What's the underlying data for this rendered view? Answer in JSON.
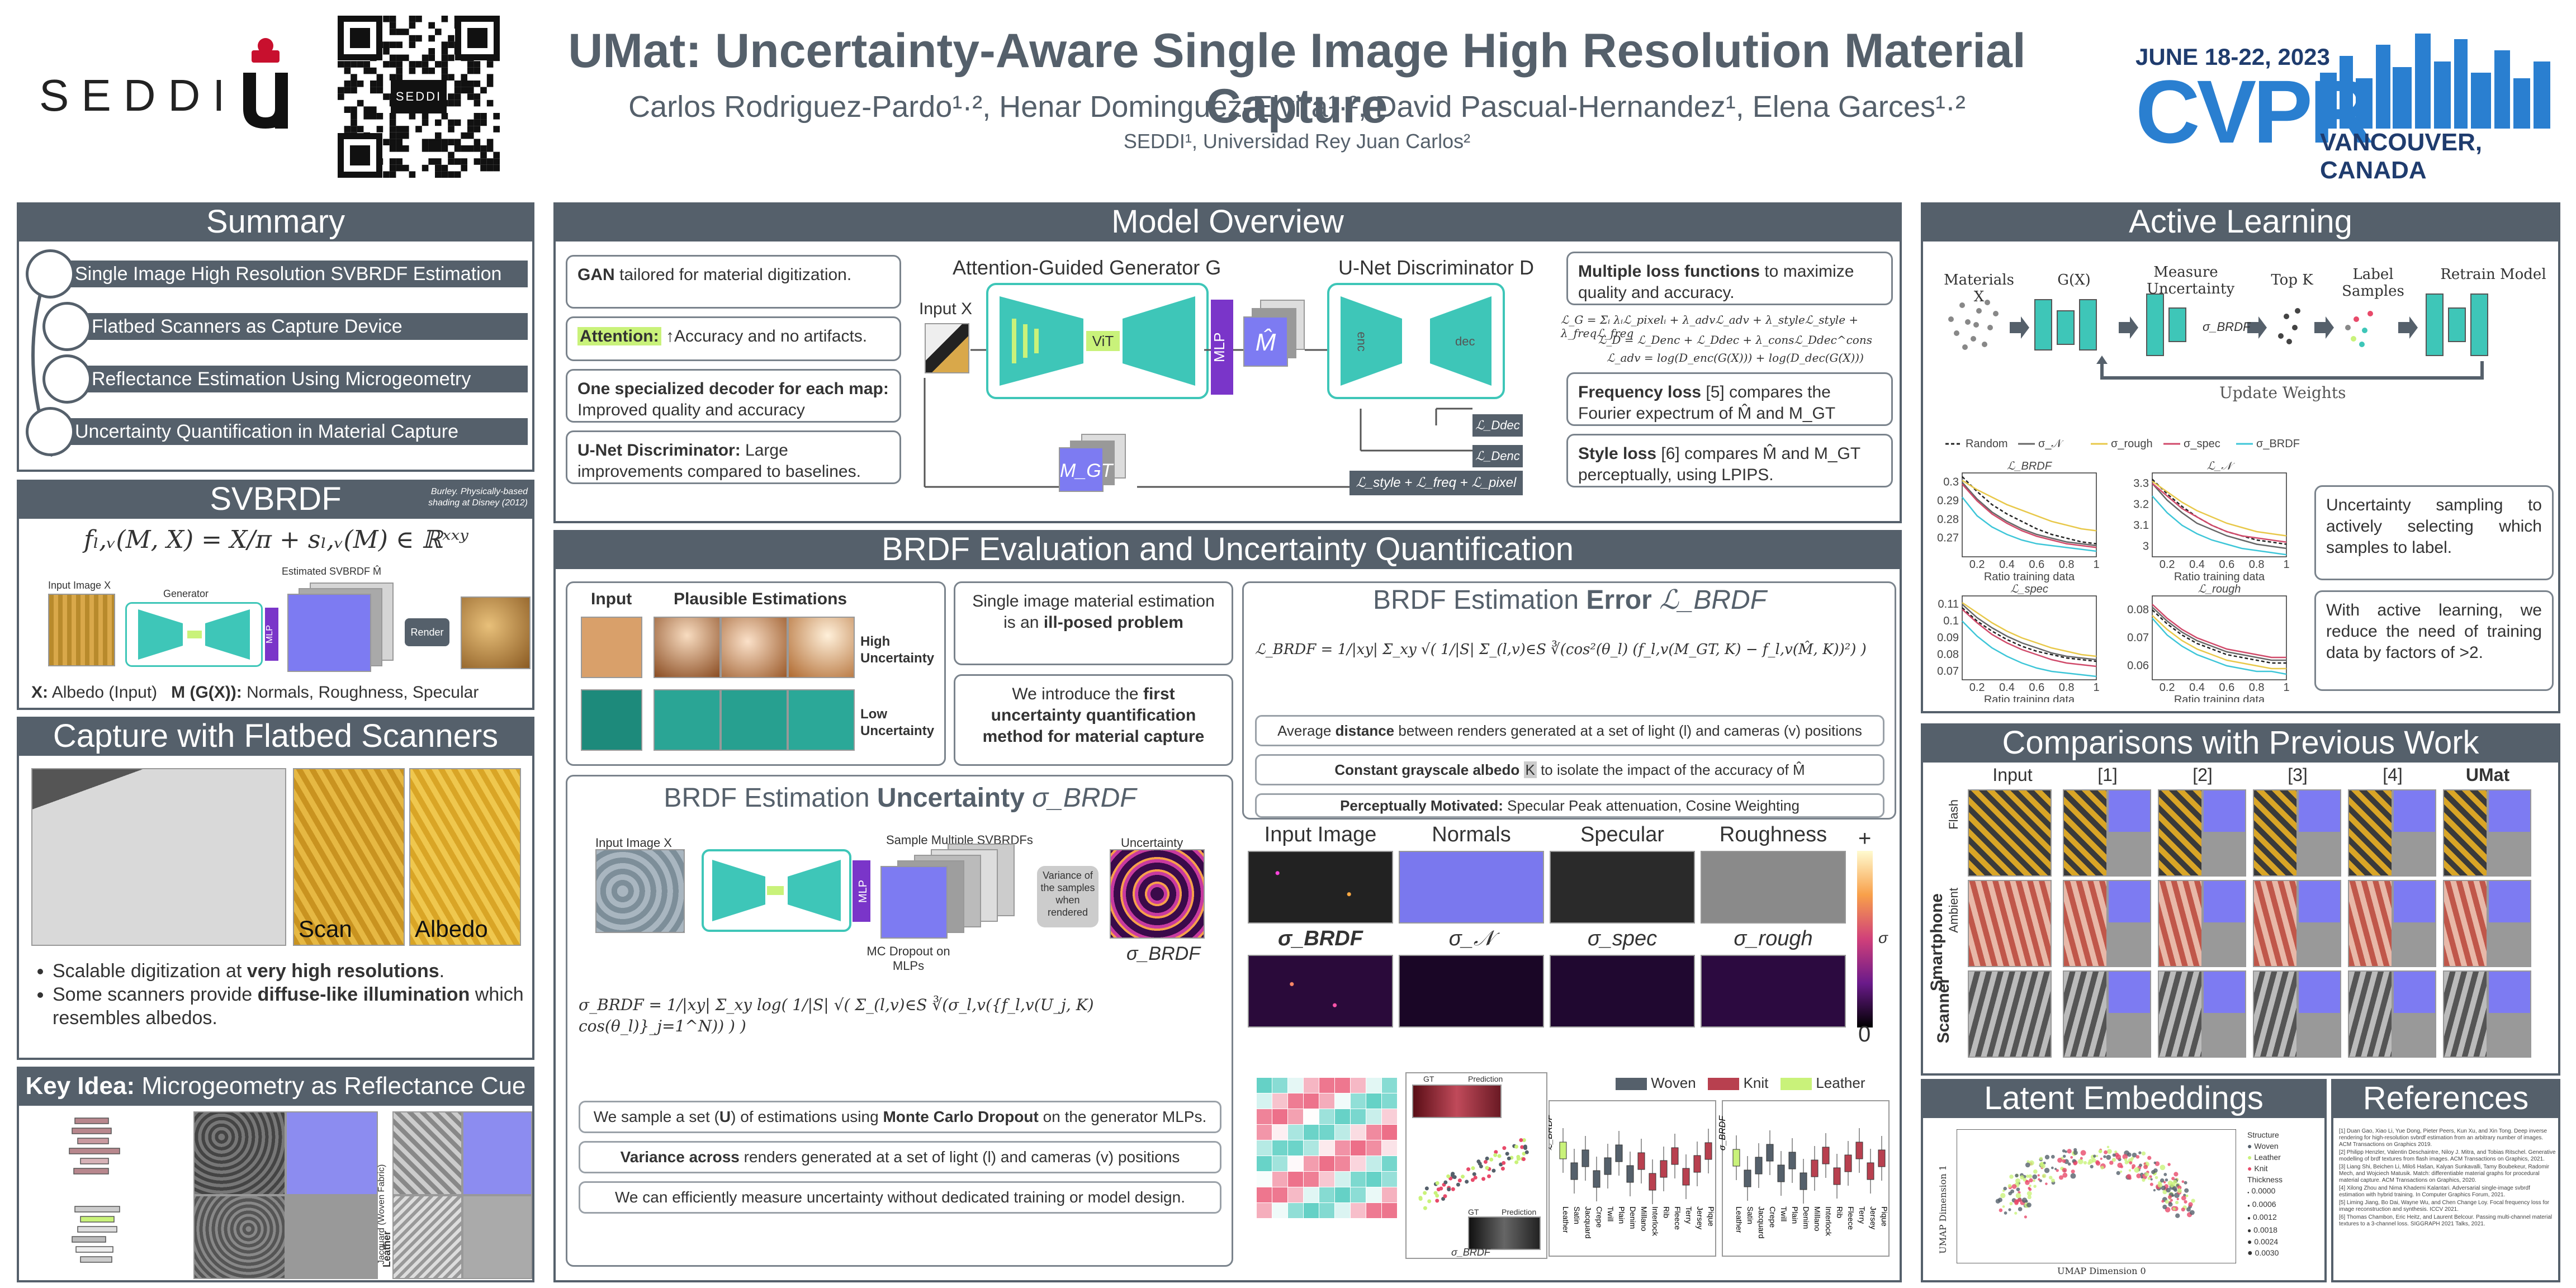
{
  "header": {
    "brand_left": "SEDDI",
    "qr_label": "SEDDI",
    "title": "UMat: Uncertainty-Aware Single Image High Resolution Material Capture",
    "authors": "Carlos Rodriguez-Pardo¹·², Henar Dominguez-Elvira¹·², David Pascual-Hernandez¹, Elena Garces¹·²",
    "affiliations": "SEDDI¹, Universidad Rey Juan Carlos²",
    "conf_dates": "JUNE 18-22, 2023",
    "conf_name": "CVPR",
    "conf_location": "VANCOUVER, CANADA"
  },
  "summary": {
    "title": "Summary",
    "items": [
      "Single Image High Resolution SVBRDF Estimation",
      "Flatbed Scanners as Capture Device",
      "Reflectance Estimation Using Microgeometry",
      "Uncertainty Quantification in Material Capture"
    ]
  },
  "svbrdf": {
    "title": "SVBRDF",
    "note_line1": "Burley. Physically-based",
    "note_line2": "shading at Disney (2012)",
    "equation": "fₗ,ᵥ(M, X) = X/π + sₗ,ᵥ(M) ∈ ℝˣˣʸ",
    "input_label": "Input Image X",
    "generator_label": "Generator",
    "estimated_label": "Estimated SVBRDF M̂",
    "mlp": "MLP",
    "render": "Render",
    "caption_x": "X:",
    "caption_x_text": "Albedo (Input)",
    "caption_m": "M (G(X)):",
    "caption_m_text": "Normals, Roughness, Specular"
  },
  "capture": {
    "title": "Capture with Flatbed Scanners",
    "scan_label": "Scan",
    "albedo_label": "Albedo",
    "bullet1_pre": "Scalable digitization at ",
    "bullet1_bold": "very high resolutions",
    "bullet1_post": ".",
    "bullet2_pre": "Some scanners provide ",
    "bullet2_bold": "diffuse-like illumination",
    "bullet2_post": " which resembles albedos."
  },
  "keyidea": {
    "title_bold": "Key Idea:",
    "title_rest": " Microgeometry as Reflectance Cue",
    "leather": "Leather",
    "jacquard": "Jacquard (Woven Fabric)"
  },
  "model": {
    "title": "Model Overview",
    "box1_bold": "GAN",
    "box1_rest": " tailored for material digitization.",
    "box2_hl": "Attention:",
    "box2_rest": " ↑Accuracy and no artifacts.",
    "box3_bold": "One specialized decoder for each map:",
    "box3_rest": "Improved quality and accuracy",
    "box4_bold": "U-Net Discriminator:",
    "box4_rest": " Large improvements compared to baselines.",
    "gen_title": "Attention-Guided Generator G",
    "disc_title": "U-Net Discriminator D",
    "input_x": "Input X",
    "vit": "ViT",
    "mlp": "MLP",
    "m_hat": "M̂",
    "m_gt": "M_GT",
    "enc": "enc",
    "dec": "dec",
    "loss_dec": "ℒ_Ddec",
    "loss_enc": "ℒ_Denc",
    "loss_sum": "ℒ_style + ℒ_freq + ℒ_pixel",
    "loss_box_bold": "Multiple loss functions",
    "loss_box_rest": " to maximize quality and accuracy.",
    "eq1": "ℒ_G = Σᵢ λᵢℒ_pixelᵢ + λ_advℒ_adv + λ_styleℒ_style + λ_freqℒ_freq",
    "eq2": "ℒ_D = ℒ_Denc + ℒ_Ddec + λ_consℒ_Ddec^cons",
    "eq3": "ℒ_adv = log(D_enc(G(X))) + log(D_dec(G(X)))",
    "freq_bold": "Frequency loss",
    "freq_rest": " [5] compares the Fourier expectrum of M̂ and M_GT",
    "style_bold": "Style loss",
    "style_rest": " [6] compares M̂ and M_GT perceptually, using LPIPS."
  },
  "brdf": {
    "title": "BRDF Evaluation and Uncertainty Quantification",
    "input_label": "Input",
    "plausible_label": "Plausible Estimations",
    "high_unc": "High Uncertainty",
    "low_unc": "Low Uncertainty",
    "illposed_pre": "Single image material estimation is an ",
    "illposed_bold": "ill-posed problem",
    "first_pre": "We introduce the ",
    "first_bold": "first uncertainty quantification method for material capture",
    "unc_title_pre": "BRDF Estimation ",
    "unc_title_bold": "Uncertainty",
    "unc_title_sym": " σ_BRDF",
    "unc_input": "Input Image X",
    "unc_sample": "Sample Multiple SVBRDFs",
    "unc_uncertainty": "Uncertainty",
    "unc_variance": "Variance of the samples when rendered",
    "unc_mc": "MC Dropout on MLPs",
    "unc_sigma": "σ_BRDF",
    "unc_eq": "σ_BRDF = 1/|xy| Σ_xy log( 1/|S| √( Σ_(l,v)∈S ∛(σ_l,v({f_l,v(U_j, K) cos(θ_l)}_j=1^N)) ) )",
    "unc_b1_pre": "We sample a set (",
    "unc_b1_u": "U",
    "unc_b1_mid": ") of estimations using ",
    "unc_b1_bold": "Monte Carlo Dropout",
    "unc_b1_post": " on the generator MLPs.",
    "unc_b2_bold": "Variance across",
    "unc_b2_rest": " renders generated at a set of light (l) and cameras (v) positions",
    "unc_b3": "We can efficiently measure uncertainty without dedicated training or model design.",
    "err_title_pre": "BRDF Estimation ",
    "err_title_bold": "Error",
    "err_title_sym": " ℒ_BRDF",
    "err_eq": "ℒ_BRDF = 1/|xy| Σ_xy √( 1/|S| Σ_(l,v)∈S ∛(cos²(θ_l) (f_l,v(M_GT, K) − f_l,v(M̂, K))²) )",
    "err_b1_pre": "Average ",
    "err_b1_bold": "distance",
    "err_b1_post": " between renders generated at a set of light (l) and cameras (v) positions",
    "err_b2_bold": "Constant grayscale albedo",
    "err_b2_k": "K",
    "err_b2_post": " to isolate the impact of the accuracy of M̂",
    "err_b3_bold": "Perceptually Motivated:",
    "err_b3_rest": " Specular Peak attenuation, Cosine Weighting",
    "map_labels": [
      "Input Image",
      "Normals",
      "Specular",
      "Roughness"
    ],
    "sigma_labels": [
      "σ_BRDF",
      "σ_𝒩",
      "σ_spec",
      "σ_rough"
    ],
    "colorbar_plus": "+",
    "colorbar_sigma": "σ",
    "colorbar_zero": "0",
    "scatter_gt": "GT",
    "scatter_pred": "Prediction",
    "scatter_xlabel": "σ_BRDF",
    "scatter_ylabel": "ℒ_BRDF",
    "box_legend": [
      "Woven",
      "Knit",
      "Leather"
    ],
    "box_categories": [
      "Leather",
      "Satin",
      "Jacquard",
      "Crepe",
      "Twill",
      "Plain",
      "Denim",
      "Millano",
      "Interlock",
      "Rib",
      "Fleece",
      "Terry",
      "Jersey",
      "Pique"
    ],
    "box_ylabel_left": "ℒ_BRDF",
    "box_ylabel_right": "σ_BRDF"
  },
  "active": {
    "title": "Active Learning",
    "steps": [
      "Materials X",
      "G(X)",
      "Measure Uncertainty",
      "Top K",
      "Label Samples",
      "Retrain Model"
    ],
    "sigma": "σ_BRDF",
    "update": "Update Weights",
    "box1": "Uncertainty sampling to actively selecting which samples to label.",
    "box2": "With active learning, we reduce the need of training data by factors of >2.",
    "xlabel": "Ratio training data"
  },
  "chart_data": [
    {
      "type": "line",
      "title": "ℒ_BRDF",
      "xlabel": "Ratio training data",
      "ylim": [
        0.26,
        0.305
      ],
      "x": [
        0.1,
        0.2,
        0.3,
        0.4,
        0.5,
        0.6,
        0.7,
        0.8,
        0.9,
        1.0
      ],
      "series": [
        {
          "name": "Random",
          "color": "#222222",
          "dash": true,
          "values": [
            0.303,
            0.295,
            0.288,
            0.283,
            0.279,
            0.275,
            0.272,
            0.27,
            0.268,
            0.267
          ]
        },
        {
          "name": "σ_𝒩",
          "color": "#666666",
          "values": [
            0.3,
            0.291,
            0.284,
            0.279,
            0.275,
            0.272,
            0.27,
            0.268,
            0.267,
            0.266
          ]
        },
        {
          "name": "σ_rough",
          "color": "#e8c84a",
          "values": [
            0.301,
            0.296,
            0.292,
            0.288,
            0.285,
            0.282,
            0.279,
            0.277,
            0.275,
            0.274
          ]
        },
        {
          "name": "σ_spec",
          "color": "#d04a6a",
          "values": [
            0.299,
            0.29,
            0.283,
            0.278,
            0.274,
            0.271,
            0.269,
            0.267,
            0.266,
            0.265
          ]
        },
        {
          "name": "σ_BRDF",
          "color": "#3ec6d8",
          "values": [
            0.292,
            0.282,
            0.276,
            0.272,
            0.269,
            0.267,
            0.266,
            0.265,
            0.264,
            0.263
          ]
        }
      ],
      "ticks_y": [
        0.27,
        0.28,
        0.29,
        0.3
      ],
      "ticks_x": [
        0.2,
        0.4,
        0.6,
        0.8,
        1.0
      ]
    },
    {
      "type": "line",
      "title": "ℒ_𝒩",
      "xlabel": "Ratio training data",
      "ylim": [
        2.95,
        3.35
      ],
      "x": [
        0.1,
        0.2,
        0.3,
        0.4,
        0.5,
        0.6,
        0.7,
        0.8,
        0.9,
        1.0
      ],
      "series": [
        {
          "name": "Random",
          "color": "#222222",
          "dash": true,
          "values": [
            3.32,
            3.25,
            3.19,
            3.14,
            3.1,
            3.07,
            3.05,
            3.03,
            3.02,
            3.01
          ]
        },
        {
          "name": "σ_𝒩",
          "color": "#666666",
          "values": [
            3.3,
            3.22,
            3.16,
            3.11,
            3.08,
            3.05,
            3.03,
            3.01,
            3.0,
            2.99
          ]
        },
        {
          "name": "σ_rough",
          "color": "#e8c84a",
          "values": [
            3.31,
            3.26,
            3.21,
            3.17,
            3.14,
            3.11,
            3.09,
            3.07,
            3.06,
            3.05
          ]
        },
        {
          "name": "σ_spec",
          "color": "#d04a6a",
          "values": [
            3.3,
            3.24,
            3.18,
            3.14,
            3.1,
            3.07,
            3.05,
            3.04,
            3.03,
            3.02
          ]
        },
        {
          "name": "σ_BRDF",
          "color": "#3ec6d8",
          "values": [
            3.24,
            3.16,
            3.1,
            3.06,
            3.03,
            3.01,
            2.99,
            2.98,
            2.97,
            2.96
          ]
        }
      ],
      "ticks_y": [
        3.0,
        3.1,
        3.2,
        3.3
      ],
      "ticks_x": [
        0.2,
        0.4,
        0.6,
        0.8,
        1.0
      ]
    },
    {
      "type": "line",
      "title": "ℒ_spec",
      "xlabel": "Ratio training data",
      "ylim": [
        0.065,
        0.115
      ],
      "x": [
        0.1,
        0.2,
        0.3,
        0.4,
        0.5,
        0.6,
        0.7,
        0.8,
        0.9,
        1.0
      ],
      "series": [
        {
          "name": "Random",
          "color": "#222222",
          "dash": true,
          "values": [
            0.108,
            0.1,
            0.094,
            0.089,
            0.085,
            0.082,
            0.08,
            0.078,
            0.077,
            0.076
          ]
        },
        {
          "name": "σ_𝒩",
          "color": "#666666",
          "values": [
            0.11,
            0.102,
            0.096,
            0.091,
            0.087,
            0.084,
            0.081,
            0.079,
            0.078,
            0.077
          ]
        },
        {
          "name": "σ_rough",
          "color": "#e8c84a",
          "values": [
            0.111,
            0.105,
            0.099,
            0.094,
            0.09,
            0.087,
            0.084,
            0.082,
            0.08,
            0.079
          ]
        },
        {
          "name": "σ_spec",
          "color": "#d04a6a",
          "values": [
            0.107,
            0.099,
            0.092,
            0.087,
            0.083,
            0.08,
            0.077,
            0.075,
            0.074,
            0.073
          ]
        },
        {
          "name": "σ_BRDF",
          "color": "#3ec6d8",
          "values": [
            0.1,
            0.091,
            0.084,
            0.079,
            0.075,
            0.072,
            0.07,
            0.069,
            0.068,
            0.067
          ]
        }
      ],
      "ticks_y": [
        0.07,
        0.08,
        0.09,
        0.1,
        0.11
      ],
      "ticks_x": [
        0.2,
        0.4,
        0.6,
        0.8,
        1.0
      ]
    },
    {
      "type": "line",
      "title": "ℒ_rough",
      "xlabel": "Ratio training data",
      "ylim": [
        0.055,
        0.085
      ],
      "x": [
        0.1,
        0.2,
        0.3,
        0.4,
        0.5,
        0.6,
        0.7,
        0.8,
        0.9,
        1.0
      ],
      "series": [
        {
          "name": "Random",
          "color": "#222222",
          "dash": true,
          "values": [
            0.08,
            0.075,
            0.071,
            0.068,
            0.066,
            0.064,
            0.063,
            0.062,
            0.061,
            0.061
          ]
        },
        {
          "name": "σ_𝒩",
          "color": "#666666",
          "values": [
            0.081,
            0.076,
            0.072,
            0.069,
            0.067,
            0.065,
            0.064,
            0.063,
            0.062,
            0.062
          ]
        },
        {
          "name": "σ_rough",
          "color": "#e8c84a",
          "values": [
            0.078,
            0.073,
            0.069,
            0.066,
            0.064,
            0.062,
            0.061,
            0.06,
            0.059,
            0.059
          ]
        },
        {
          "name": "σ_spec",
          "color": "#d04a6a",
          "values": [
            0.082,
            0.077,
            0.073,
            0.07,
            0.068,
            0.066,
            0.065,
            0.064,
            0.063,
            0.063
          ]
        },
        {
          "name": "σ_BRDF",
          "color": "#3ec6d8",
          "values": [
            0.077,
            0.071,
            0.067,
            0.064,
            0.062,
            0.06,
            0.059,
            0.058,
            0.058,
            0.057
          ]
        }
      ],
      "ticks_y": [
        0.06,
        0.07,
        0.08
      ],
      "ticks_x": [
        0.2,
        0.4,
        0.6,
        0.8,
        1.0
      ]
    }
  ],
  "comparisons": {
    "title": "Comparisons with Previous Work",
    "cols": [
      "Input",
      "[1]",
      "[2]",
      "[3]",
      "[4]",
      "UMat"
    ],
    "row_group1": "Smartphone",
    "row_flash": "Flash",
    "row_ambient": "Ambient",
    "row_group2": "Scanner"
  },
  "latent": {
    "title": "Latent Embeddings",
    "xlabel": "UMAP Dimension 0",
    "ylabel": "UMAP Dimension 1",
    "legend_title": "Structure",
    "legend_items": [
      "Woven",
      "Leather",
      "Knit"
    ],
    "thick_title": "Thickness",
    "thick_items": [
      "0.0000",
      "0.0006",
      "0.0012",
      "0.0018",
      "0.0024",
      "0.0030"
    ]
  },
  "references": {
    "title": "References",
    "items": [
      "[1] Duan Gao, Xiao Li, Yue Dong, Pieter Peers, Kun Xu, and Xin Tong. Deep inverse rendering for high-resolution svbrdf estimation from an arbitrary number of images. ACM Transactions on Graphics 2019.",
      "[2] Philipp Henzler, Valentin Deschaintre, Niloy J. Mitra, and Tobias Ritschel. Generative modelling of brdf textures from flash images. ACM Transactions on Graphics, 2021.",
      "[3] Liang Shi, Beichen Li, Miloš Hašan, Kalyan Sunkavalli, Tamy Boubekeur, Radomir Mech, and Wojciech Matusik. Match: differentiable material graphs for procedural material capture. ACM Transactions on Graphics, 2020.",
      "[4] Xilong Zhou and Nima Khademi Kalantari. Adversarial single-image svbrdf estimation with hybrid training. In Computer Graphics Forum, 2021.",
      "[5] Liming Jiang, Bo Dai, Wayne Wu, and Chen Change Loy. Focal frequency loss for image reconstruction and synthesis. ICCV 2021.",
      "[6] Thomas Chambon, Eric Heitz, and Laurent Belcour. Passing multi-channel material textures to a 3-channel loss. SIGGRAPH 2021 Talks, 2021."
    ]
  }
}
